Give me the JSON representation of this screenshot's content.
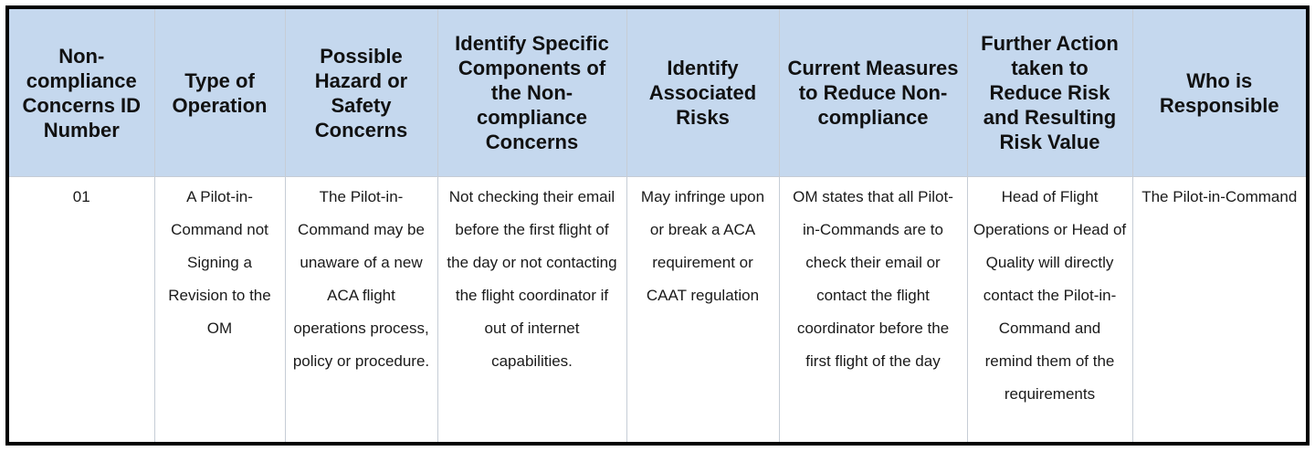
{
  "colors": {
    "header_background": "#c5d8ee",
    "frame_border": "#000000",
    "cell_border": "#c6cdd6"
  },
  "headers": [
    "Non-compliance Concerns ID Number",
    "Type of Operation",
    "Possible Hazard or Safety Concerns",
    "Identify Specific Components of the Non-compliance Concerns",
    "Identify Associated Risks",
    "Current Measures to Reduce Non-compliance",
    "Further Action taken to Reduce Risk and Resulting Risk Value",
    "Who is Responsible"
  ],
  "rows": [
    [
      "01",
      "A Pilot-in-Command not Signing a Revision to the OM",
      "The Pilot-in-Command may be unaware of a new ACA flight operations process, policy or procedure.",
      "Not checking their email before the first flight of the day or not contacting the flight coordinator if out of internet capabilities.",
      "May infringe upon or break a ACA requirement or CAAT regulation",
      "OM states that all Pilot-in-Commands are to check their email or contact the flight coordinator before the first flight of the day",
      "Head of Flight Operations or Head of Quality will directly contact the Pilot-in-Command and remind them of the requirements",
      "The Pilot-in-Command"
    ]
  ]
}
